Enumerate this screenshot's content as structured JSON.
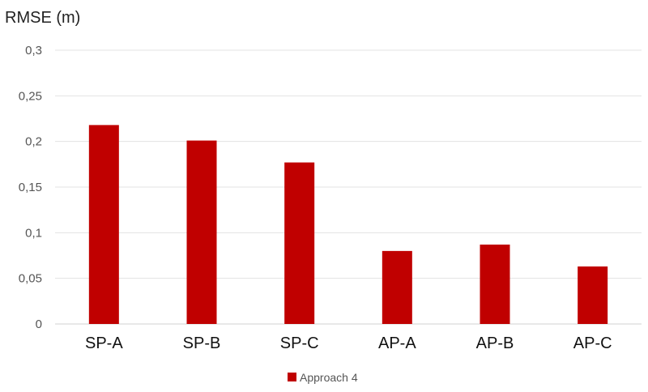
{
  "chart_data": {
    "type": "bar",
    "title": "",
    "xlabel": "",
    "ylabel": "RMSE (m)",
    "categories": [
      "SP-A",
      "SP-B",
      "SP-C",
      "AP-A",
      "AP-B",
      "AP-C"
    ],
    "series": [
      {
        "name": "Approach 4",
        "color": "#c00000",
        "values": [
          0.218,
          0.201,
          0.177,
          0.08,
          0.087,
          0.063
        ]
      }
    ],
    "ylim": [
      0,
      0.3
    ],
    "yticks": [
      0,
      0.05,
      0.1,
      0.15,
      0.2,
      0.25,
      0.3
    ],
    "ytick_labels": [
      "0",
      "0,05",
      "0,1",
      "0,15",
      "0,2",
      "0,25",
      "0,3"
    ],
    "grid": true,
    "legend_position": "bottom"
  }
}
